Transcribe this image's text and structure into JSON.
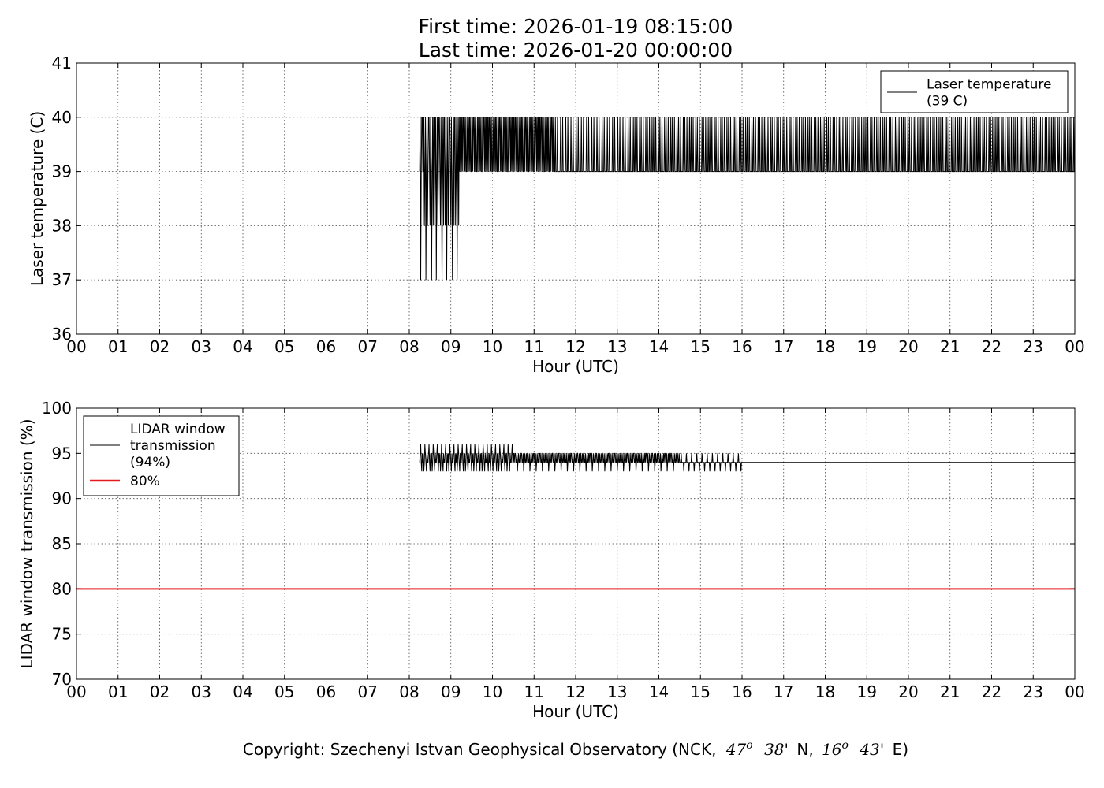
{
  "title": {
    "line1": "First time: 2026-01-19 08:15:00",
    "line2": "Last time: 2026-01-20 00:00:00"
  },
  "copyright": {
    "prefix": "Copyright: Szechenyi Istvan Geophysical Observatory (NCK,",
    "lat_value": "47",
    "lat_sup": "o",
    "lat_min": "38'",
    "lat_dir": "N,",
    "lon_value": "16",
    "lon_sup": "o",
    "lon_min": "43'",
    "lon_dir": "E)"
  },
  "chart_data": [
    {
      "type": "line",
      "xlabel": "Hour (UTC)",
      "ylabel": "Laser temperature (C)",
      "xlim": [
        0,
        24
      ],
      "ylim": [
        36,
        41
      ],
      "x_ticks": [
        0,
        1,
        2,
        3,
        4,
        5,
        6,
        7,
        8,
        9,
        10,
        11,
        12,
        13,
        14,
        15,
        16,
        17,
        18,
        19,
        20,
        21,
        22,
        23,
        24
      ],
      "x_tick_labels": [
        "00",
        "01",
        "02",
        "03",
        "04",
        "05",
        "06",
        "07",
        "08",
        "09",
        "10",
        "11",
        "12",
        "13",
        "14",
        "15",
        "16",
        "17",
        "18",
        "19",
        "20",
        "21",
        "22",
        "23",
        "00"
      ],
      "y_ticks": [
        36,
        37,
        38,
        39,
        40,
        41
      ],
      "y_tick_labels": [
        "36",
        "37",
        "38",
        "39",
        "40",
        "41"
      ],
      "grid": true,
      "legend_position": "top-right",
      "series": [
        {
          "name": "Laser temperature\n(39 C)",
          "legend_lines": [
            "Laser temperature",
            "(39 C)"
          ],
          "color": "#000000",
          "line_width": 1,
          "step_x": 0.0125,
          "x_start": 8.25,
          "x_end": 24.0,
          "segments": [
            {
              "x": [
                8.25,
                8.35
              ],
              "state": "fast",
              "low": 37,
              "high": 40,
              "pattern": [
                39,
                40,
                37,
                39,
                40,
                40,
                39,
                39
              ]
            },
            {
              "x": [
                8.35,
                9.2
              ],
              "state": "fast",
              "low": 37,
              "high": 40,
              "pattern": [
                40,
                38,
                39,
                40,
                37,
                39,
                40,
                38,
                39,
                40,
                40,
                39,
                38,
                40,
                39,
                37,
                39,
                40,
                38,
                40
              ]
            },
            {
              "x": [
                9.2,
                11.5
              ],
              "state": "fast",
              "low": 39,
              "high": 40,
              "pattern": [
                40,
                39,
                40,
                39,
                39,
                40,
                39,
                40,
                40,
                39
              ]
            },
            {
              "x": [
                11.5,
                13.4
              ],
              "state": "mixed",
              "low": 39,
              "high": 40,
              "pattern": [
                39,
                40,
                39,
                39,
                39,
                40,
                39,
                39,
                39,
                39
              ]
            },
            {
              "x": [
                13.4,
                24.0
              ],
              "state": "sparse",
              "low": 39,
              "high": 40,
              "pattern": [
                39,
                39,
                40,
                39,
                39,
                39,
                40,
                39,
                39,
                39,
                39,
                40
              ]
            }
          ],
          "baseline": 39,
          "latest_value": 39
        }
      ]
    },
    {
      "type": "line",
      "xlabel": "Hour (UTC)",
      "ylabel": "LIDAR window transmission (%)",
      "xlim": [
        0,
        24
      ],
      "ylim": [
        70,
        100
      ],
      "x_ticks": [
        0,
        1,
        2,
        3,
        4,
        5,
        6,
        7,
        8,
        9,
        10,
        11,
        12,
        13,
        14,
        15,
        16,
        17,
        18,
        19,
        20,
        21,
        22,
        23,
        24
      ],
      "x_tick_labels": [
        "00",
        "01",
        "02",
        "03",
        "04",
        "05",
        "06",
        "07",
        "08",
        "09",
        "10",
        "11",
        "12",
        "13",
        "14",
        "15",
        "16",
        "17",
        "18",
        "19",
        "20",
        "21",
        "22",
        "23",
        "00"
      ],
      "y_ticks": [
        70,
        75,
        80,
        85,
        90,
        95,
        100
      ],
      "y_tick_labels": [
        "70",
        "75",
        "80",
        "85",
        "90",
        "95",
        "100"
      ],
      "grid": true,
      "legend_position": "top-left",
      "series": [
        {
          "name": "LIDAR window\ntransmission\n(94%)",
          "legend_lines": [
            "LIDAR window",
            "transmission",
            "(94%)"
          ],
          "color": "#000000",
          "line_width": 1,
          "x_start": 8.25,
          "x_end": 24.0,
          "segments": [
            {
              "x": [
                8.25,
                10.5
              ],
              "low": 92,
              "high": 96,
              "pattern": [
                94,
                95,
                96,
                94,
                93,
                95,
                94,
                95,
                93,
                94,
                96,
                95,
                94,
                93,
                95,
                94
              ]
            },
            {
              "x": [
                10.5,
                14.5
              ],
              "low": 93,
              "high": 95,
              "pattern": [
                94,
                95,
                94,
                95,
                95,
                94,
                94,
                95,
                93,
                94,
                95,
                94
              ]
            },
            {
              "x": [
                14.5,
                16.0
              ],
              "low": 93,
              "high": 95,
              "pattern": [
                94,
                94,
                94,
                95,
                94,
                94,
                94,
                94,
                93,
                94
              ]
            },
            {
              "x": [
                16.0,
                24.0
              ],
              "low": 94,
              "high": 94,
              "pattern": [
                94
              ]
            }
          ],
          "baseline": 94,
          "latest_value": 94
        },
        {
          "name": "80%",
          "legend_lines": [
            "80%"
          ],
          "color": "#e41a1c",
          "line_width": 2,
          "x": [
            0,
            24
          ],
          "y": [
            80,
            80
          ]
        }
      ]
    }
  ]
}
